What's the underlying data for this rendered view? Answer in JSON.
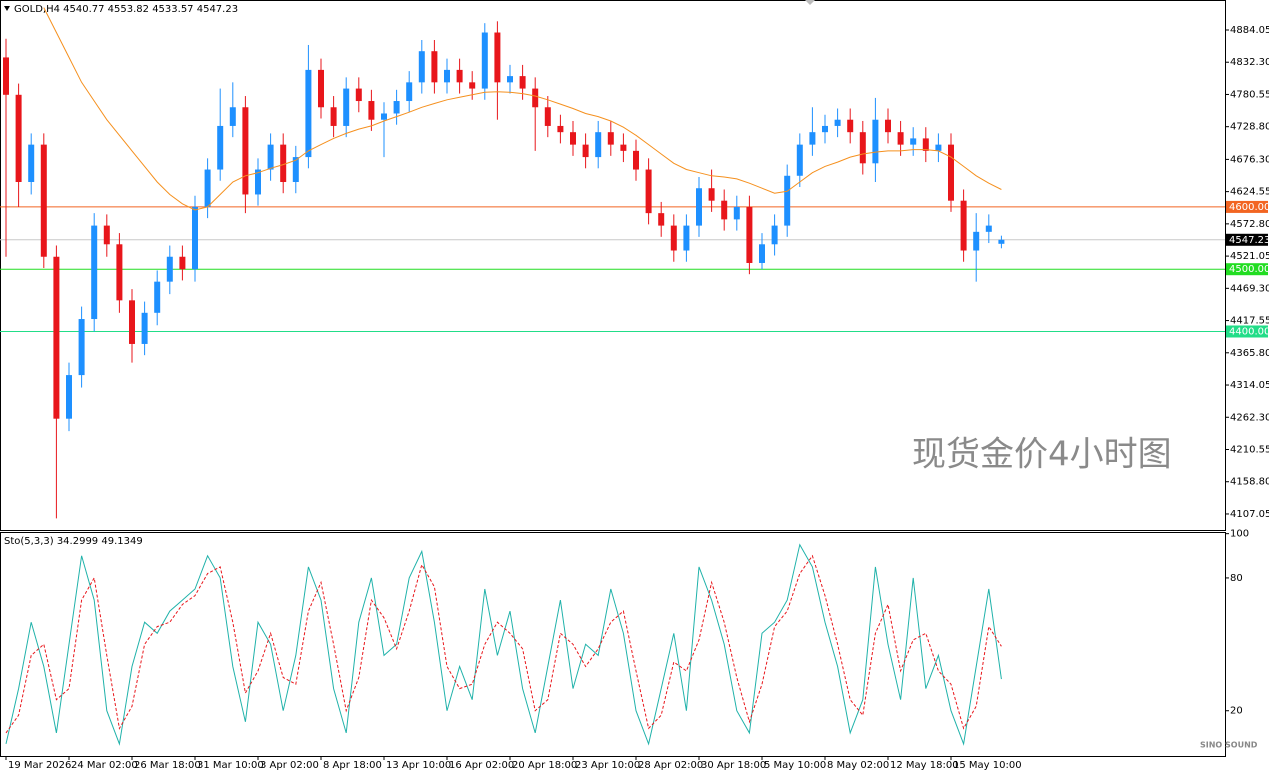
{
  "chart_data": [
    {
      "type": "candlestick",
      "title": "GOLD,H4  4540.77 4553.82 4533.57 4547.23",
      "annotation": "现货金价4小时图",
      "watermark": "SINO SOUND",
      "categories": [
        "19 Mar 2026",
        null,
        null,
        null,
        null,
        "24 Mar 02:00",
        null,
        null,
        null,
        null,
        "26 Mar 18:00",
        null,
        null,
        null,
        null,
        "31 Mar 10:00",
        null,
        null,
        null,
        null,
        "3 Apr 02:00",
        null,
        null,
        null,
        null,
        "8 Apr 18:00",
        null,
        null,
        null,
        null,
        "13 Apr 10:00",
        null,
        null,
        null,
        null,
        "16 Apr 02:00",
        null,
        null,
        null,
        null,
        "20 Apr 18:00",
        null,
        null,
        null,
        null,
        "23 Apr 10:00",
        null,
        null,
        null,
        null,
        "28 Apr 02:00",
        null,
        null,
        null,
        null,
        "30 Apr 18:00",
        null,
        null,
        null,
        null,
        "5 May 10:00",
        null,
        null,
        null,
        null,
        "8 May 02:00",
        null,
        null,
        null,
        null,
        "12 May 18:00",
        null,
        null,
        null,
        null,
        "15 May 10:00",
        null,
        null,
        null,
        null
      ],
      "open": [
        4840,
        4780,
        4640,
        4700,
        4520,
        4260,
        4330,
        4420,
        4570,
        4540,
        4450,
        4380,
        4430,
        4480,
        4520,
        4500,
        4600,
        4660,
        4730,
        4760,
        4620,
        4660,
        4700,
        4640,
        4680,
        4820,
        4760,
        4730,
        4790,
        4770,
        4740,
        4750,
        4770,
        4800,
        4850,
        4800,
        4820,
        4800,
        4790,
        4880,
        4800,
        4810,
        4790,
        4760,
        4730,
        4720,
        4700,
        4680,
        4720,
        4700,
        4690,
        4660,
        4590,
        4570,
        4530,
        4570,
        4630,
        4610,
        4580,
        4600,
        4510,
        4540,
        4570,
        4650,
        4700,
        4720,
        4730,
        4740,
        4720,
        4670,
        4740,
        4720,
        4700,
        4710,
        4690,
        4700,
        4610,
        4530,
        4560,
        4540.77
      ],
      "high": [
        4870,
        4798,
        4718,
        4718,
        4538,
        4350,
        4440,
        4590,
        4588,
        4558,
        4468,
        4448,
        4498,
        4538,
        4538,
        4618,
        4678,
        4790,
        4800,
        4778,
        4678,
        4718,
        4718,
        4698,
        4860,
        4838,
        4778,
        4808,
        4808,
        4788,
        4768,
        4788,
        4818,
        4868,
        4868,
        4838,
        4838,
        4818,
        4895,
        4898,
        4828,
        4828,
        4808,
        4778,
        4748,
        4738,
        4718,
        4738,
        4738,
        4718,
        4708,
        4678,
        4608,
        4588,
        4588,
        4648,
        4660,
        4628,
        4618,
        4618,
        4558,
        4588,
        4668,
        4718,
        4760,
        4748,
        4758,
        4758,
        4738,
        4775,
        4758,
        4738,
        4728,
        4728,
        4718,
        4718,
        4628,
        4590,
        4588,
        4553.82
      ],
      "low": [
        4520,
        4600,
        4620,
        4502,
        4100,
        4240,
        4310,
        4400,
        4520,
        4430,
        4350,
        4362,
        4410,
        4460,
        4482,
        4480,
        4582,
        4642,
        4712,
        4590,
        4602,
        4642,
        4622,
        4622,
        4662,
        4742,
        4712,
        4712,
        4752,
        4722,
        4680,
        4732,
        4752,
        4782,
        4782,
        4782,
        4782,
        4772,
        4772,
        4740,
        4782,
        4772,
        4690,
        4712,
        4702,
        4682,
        4662,
        4662,
        4682,
        4672,
        4642,
        4572,
        4552,
        4512,
        4512,
        4552,
        4592,
        4562,
        4562,
        4492,
        4500,
        4522,
        4552,
        4632,
        4682,
        4702,
        4712,
        4702,
        4652,
        4640,
        4702,
        4682,
        4682,
        4672,
        4672,
        4592,
        4512,
        4480,
        4542,
        4533.57
      ],
      "close": [
        4780,
        4640,
        4700,
        4520,
        4260,
        4330,
        4420,
        4570,
        4540,
        4450,
        4380,
        4430,
        4480,
        4520,
        4500,
        4600,
        4660,
        4730,
        4760,
        4620,
        4660,
        4700,
        4640,
        4680,
        4820,
        4760,
        4730,
        4790,
        4770,
        4740,
        4750,
        4770,
        4800,
        4850,
        4800,
        4820,
        4800,
        4790,
        4880,
        4800,
        4810,
        4790,
        4760,
        4730,
        4720,
        4700,
        4680,
        4720,
        4700,
        4690,
        4660,
        4590,
        4570,
        4530,
        4570,
        4630,
        4610,
        4580,
        4600,
        4510,
        4540,
        4570,
        4650,
        4700,
        4720,
        4730,
        4740,
        4720,
        4670,
        4740,
        4720,
        4700,
        4710,
        4690,
        4700,
        4610,
        4530,
        4560,
        4570,
        4547.23
      ],
      "ma": [
        null,
        null,
        null,
        4920,
        4880,
        4840,
        4800,
        4770,
        4740,
        4715,
        4690,
        4665,
        4640,
        4620,
        4605,
        4595,
        4600,
        4620,
        4640,
        4650,
        4655,
        4662,
        4668,
        4675,
        4690,
        4700,
        4710,
        4718,
        4725,
        4730,
        4738,
        4745,
        4752,
        4760,
        4766,
        4772,
        4776,
        4780,
        4784,
        4785,
        4784,
        4782,
        4778,
        4772,
        4765,
        4758,
        4750,
        4745,
        4738,
        4728,
        4715,
        4700,
        4685,
        4670,
        4660,
        4655,
        4650,
        4648,
        4645,
        4638,
        4630,
        4622,
        4625,
        4640,
        4655,
        4665,
        4672,
        4680,
        4685,
        4688,
        4690,
        4690,
        4692,
        4692,
        4690,
        4680,
        4665,
        4650,
        4638,
        4628
      ],
      "ma_color": "#f5901e",
      "up_color": "#1e90ff",
      "down_color": "#e8161b",
      "ylim": [
        4081.3,
        4932.2
      ],
      "yticks": [
        4884.05,
        {
          "value": 4832.3,
          "label": "4832.30"
        },
        4780.55,
        {
          "value": 4728.8,
          "label": "4728.80"
        },
        {
          "value": 4676.3,
          "label": "4676.30"
        },
        4624.55,
        {
          "value": 4572.8,
          "label": "4572.80"
        },
        4521.05,
        {
          "value": 4469.3,
          "label": "4469.30"
        },
        4417.55,
        {
          "value": 4365.8,
          "label": "4365.80"
        },
        4314.05,
        {
          "value": 4262.3,
          "label": "4262.30"
        },
        4210.55,
        {
          "value": 4158.8,
          "label": "4158.80"
        },
        4107.05
      ],
      "levels": [
        {
          "value": 4600,
          "label": "4600.00",
          "color": "#f26522"
        },
        {
          "value": 4500,
          "label": "4500.00",
          "color": "#22dd22"
        },
        {
          "value": 4400,
          "label": "4400.00",
          "color": "#22dd88"
        }
      ],
      "last_price": 4547.23,
      "grid": false
    },
    {
      "type": "line",
      "title": "Sto(5,3,3) 34.2999 49.1349",
      "series": [
        {
          "color": "#20b2aa",
          "dash": false,
          "values": [
            5,
            30,
            60,
            40,
            10,
            50,
            90,
            70,
            20,
            5,
            40,
            60,
            55,
            65,
            70,
            75,
            90,
            80,
            40,
            15,
            60,
            50,
            20,
            45,
            85,
            70,
            30,
            10,
            60,
            80,
            45,
            50,
            80,
            92,
            60,
            20,
            40,
            25,
            75,
            45,
            65,
            30,
            10,
            40,
            70,
            30,
            50,
            45,
            75,
            55,
            20,
            5,
            30,
            55,
            20,
            85,
            70,
            50,
            20,
            10,
            55,
            60,
            70,
            95,
            85,
            60,
            40,
            10,
            25,
            85,
            50,
            25,
            80,
            30,
            45,
            20,
            5,
            40,
            75,
            34.3
          ]
        },
        {
          "color": "#e8161b",
          "dash": true,
          "values": [
            10,
            18,
            45,
            50,
            25,
            30,
            70,
            80,
            45,
            12,
            22,
            50,
            58,
            60,
            68,
            72,
            82,
            85,
            60,
            28,
            38,
            55,
            35,
            32,
            65,
            78,
            50,
            20,
            35,
            70,
            62,
            48,
            65,
            86,
            76,
            40,
            30,
            32,
            50,
            60,
            55,
            48,
            20,
            25,
            55,
            50,
            40,
            48,
            60,
            65,
            38,
            12,
            18,
            42,
            38,
            52,
            78,
            60,
            35,
            15,
            32,
            58,
            65,
            82,
            90,
            72,
            50,
            25,
            18,
            55,
            68,
            38,
            52,
            55,
            38,
            32,
            12,
            22,
            58,
            49.13
          ]
        }
      ],
      "ylim": [
        0,
        100.3
      ],
      "yticks": [
        100,
        80,
        20
      ]
    }
  ]
}
